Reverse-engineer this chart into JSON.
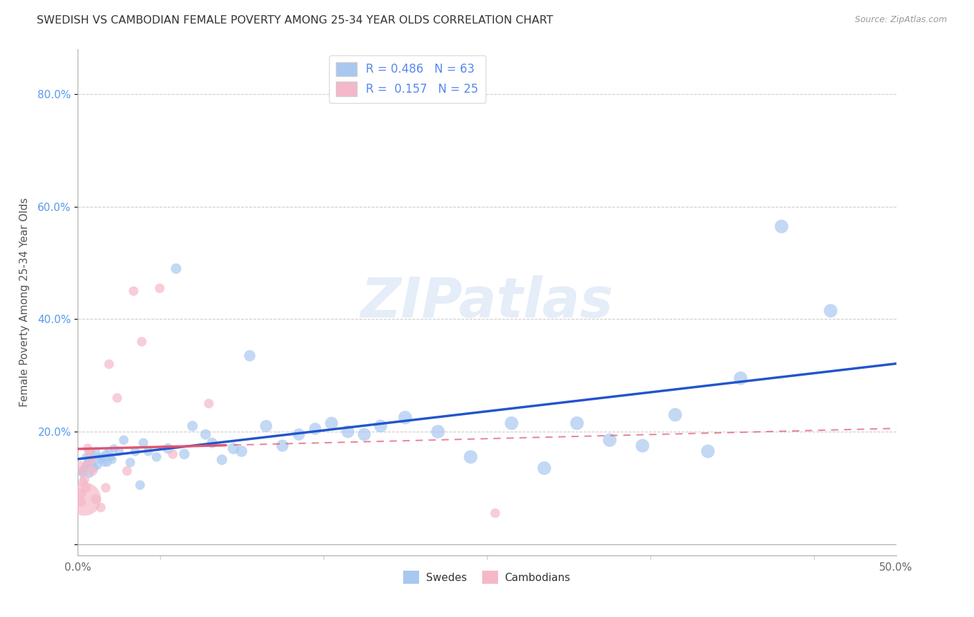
{
  "title": "SWEDISH VS CAMBODIAN FEMALE POVERTY AMONG 25-34 YEAR OLDS CORRELATION CHART",
  "source": "Source: ZipAtlas.com",
  "ylabel": "Female Poverty Among 25-34 Year Olds",
  "xlim": [
    0.0,
    0.5
  ],
  "ylim": [
    -0.02,
    0.88
  ],
  "xticks": [
    0.0,
    0.1,
    0.2,
    0.3,
    0.4,
    0.5
  ],
  "xticklabels": [
    "0.0%",
    "",
    "",
    "",
    "",
    "50.0%"
  ],
  "yticks": [
    0.0,
    0.2,
    0.4,
    0.6,
    0.8
  ],
  "yticklabels": [
    "",
    "20.0%",
    "40.0%",
    "60.0%",
    "80.0%"
  ],
  "grid_yticks": [
    0.2,
    0.4,
    0.6,
    0.8
  ],
  "swedes_R": 0.486,
  "swedes_N": 63,
  "cambodians_R": 0.157,
  "cambodians_N": 25,
  "swede_color": "#a8c8f0",
  "cambodian_color": "#f5b8c8",
  "swede_line_color": "#2255cc",
  "cambodian_line_color": "#e05570",
  "watermark": "ZIPatlas",
  "swedes_x": [
    0.002,
    0.003,
    0.004,
    0.005,
    0.005,
    0.006,
    0.007,
    0.007,
    0.008,
    0.009,
    0.009,
    0.01,
    0.011,
    0.012,
    0.013,
    0.014,
    0.015,
    0.016,
    0.017,
    0.018,
    0.019,
    0.02,
    0.021,
    0.022,
    0.025,
    0.028,
    0.032,
    0.035,
    0.038,
    0.04,
    0.043,
    0.048,
    0.055,
    0.06,
    0.065,
    0.07,
    0.078,
    0.082,
    0.088,
    0.095,
    0.1,
    0.105,
    0.115,
    0.125,
    0.135,
    0.145,
    0.155,
    0.165,
    0.175,
    0.185,
    0.2,
    0.22,
    0.24,
    0.265,
    0.285,
    0.305,
    0.325,
    0.345,
    0.365,
    0.385,
    0.405,
    0.43,
    0.46
  ],
  "swedes_y": [
    0.13,
    0.125,
    0.135,
    0.14,
    0.155,
    0.145,
    0.125,
    0.155,
    0.165,
    0.155,
    0.145,
    0.135,
    0.165,
    0.14,
    0.155,
    0.15,
    0.155,
    0.145,
    0.16,
    0.145,
    0.165,
    0.155,
    0.15,
    0.17,
    0.165,
    0.185,
    0.145,
    0.165,
    0.105,
    0.18,
    0.165,
    0.155,
    0.17,
    0.49,
    0.16,
    0.21,
    0.195,
    0.18,
    0.15,
    0.17,
    0.165,
    0.335,
    0.21,
    0.175,
    0.195,
    0.205,
    0.215,
    0.2,
    0.195,
    0.21,
    0.225,
    0.2,
    0.155,
    0.215,
    0.135,
    0.215,
    0.185,
    0.175,
    0.23,
    0.165,
    0.295,
    0.565,
    0.415
  ],
  "swedes_size": [
    80,
    80,
    80,
    80,
    80,
    80,
    80,
    80,
    80,
    80,
    80,
    80,
    80,
    80,
    80,
    80,
    80,
    80,
    80,
    80,
    80,
    80,
    80,
    80,
    100,
    100,
    100,
    100,
    100,
    100,
    100,
    100,
    120,
    120,
    120,
    120,
    120,
    120,
    120,
    140,
    140,
    140,
    160,
    160,
    160,
    160,
    180,
    180,
    180,
    180,
    200,
    200,
    200,
    200,
    200,
    200,
    200,
    200,
    200,
    200,
    200,
    200,
    200
  ],
  "cambodians_x": [
    0.001,
    0.002,
    0.002,
    0.003,
    0.003,
    0.004,
    0.004,
    0.005,
    0.006,
    0.006,
    0.007,
    0.008,
    0.009,
    0.011,
    0.014,
    0.017,
    0.019,
    0.024,
    0.03,
    0.034,
    0.039,
    0.05,
    0.058,
    0.08,
    0.255
  ],
  "cambodians_y": [
    0.14,
    0.075,
    0.09,
    0.11,
    0.13,
    0.08,
    0.115,
    0.1,
    0.17,
    0.14,
    0.165,
    0.15,
    0.13,
    0.08,
    0.065,
    0.1,
    0.32,
    0.26,
    0.13,
    0.45,
    0.36,
    0.455,
    0.16,
    0.25,
    0.055
  ],
  "cambodians_size": [
    100,
    100,
    100,
    100,
    100,
    1200,
    100,
    100,
    100,
    100,
    100,
    100,
    100,
    100,
    100,
    100,
    100,
    100,
    100,
    100,
    100,
    100,
    100,
    100,
    100
  ]
}
